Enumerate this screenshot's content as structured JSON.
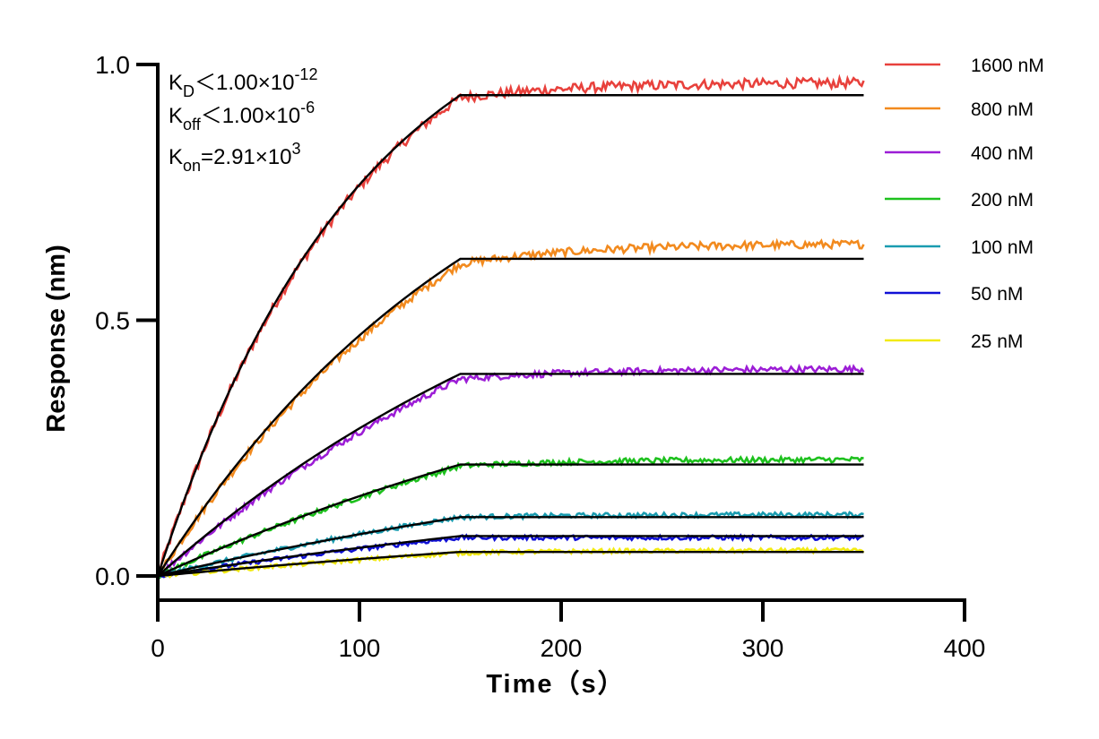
{
  "chart_data": {
    "type": "line",
    "title": "",
    "xlabel": "Time（s）",
    "ylabel": "Response (nm)",
    "xlim": [
      0,
      400
    ],
    "ylim": [
      -0.05,
      1.0
    ],
    "x_ticks": [
      0,
      100,
      200,
      300,
      400
    ],
    "x_tick_labels": [
      "0",
      "100",
      "200",
      "300",
      "400"
    ],
    "y_ticks": [
      0.0,
      0.5,
      1.0
    ],
    "y_tick_labels": [
      "0.0",
      "0.5",
      "1.0"
    ],
    "grid": false,
    "legend_position": "right",
    "association_end_s": 150,
    "run_end_s": 350,
    "annotations": [
      {
        "base": "K",
        "sub": "D",
        "text": "＜1.00×10",
        "sup": "-12"
      },
      {
        "base": "K",
        "sub": "off",
        "text": "＜1.00×10",
        "sup": "-6"
      },
      {
        "base": "K",
        "sub": "on",
        "text": "=2.91×10",
        "sup": "3"
      }
    ],
    "fit_color": "#000000",
    "series": [
      {
        "name": "1600 nM",
        "color": "#e8413c",
        "plateau_measured": 0.935,
        "plateau_end_measured": 0.965,
        "fit_plateau": 0.94,
        "tau": 100
      },
      {
        "name": "800 nM",
        "color": "#f28a1e",
        "plateau_measured": 0.61,
        "plateau_end_measured": 0.65,
        "fit_plateau": 0.62,
        "tau": 170
      },
      {
        "name": "400 nM",
        "color": "#9c1dd6",
        "plateau_measured": 0.385,
        "plateau_end_measured": 0.405,
        "fit_plateau": 0.395,
        "tau": 250
      },
      {
        "name": "200 nM",
        "color": "#1ec11e",
        "plateau_measured": 0.215,
        "plateau_end_measured": 0.228,
        "fit_plateau": 0.218,
        "tau": 330
      },
      {
        "name": "100 nM",
        "color": "#1a9cb0",
        "plateau_measured": 0.115,
        "plateau_end_measured": 0.12,
        "fit_plateau": 0.115,
        "tau": 380
      },
      {
        "name": "50 nM",
        "color": "#1010d6",
        "plateau_measured": 0.075,
        "plateau_end_measured": 0.075,
        "fit_plateau": 0.078,
        "tau": 420
      },
      {
        "name": "25 nM",
        "color": "#f2ea12",
        "plateau_measured": 0.045,
        "plateau_end_measured": 0.05,
        "fit_plateau": 0.047,
        "tau": 460
      }
    ]
  }
}
